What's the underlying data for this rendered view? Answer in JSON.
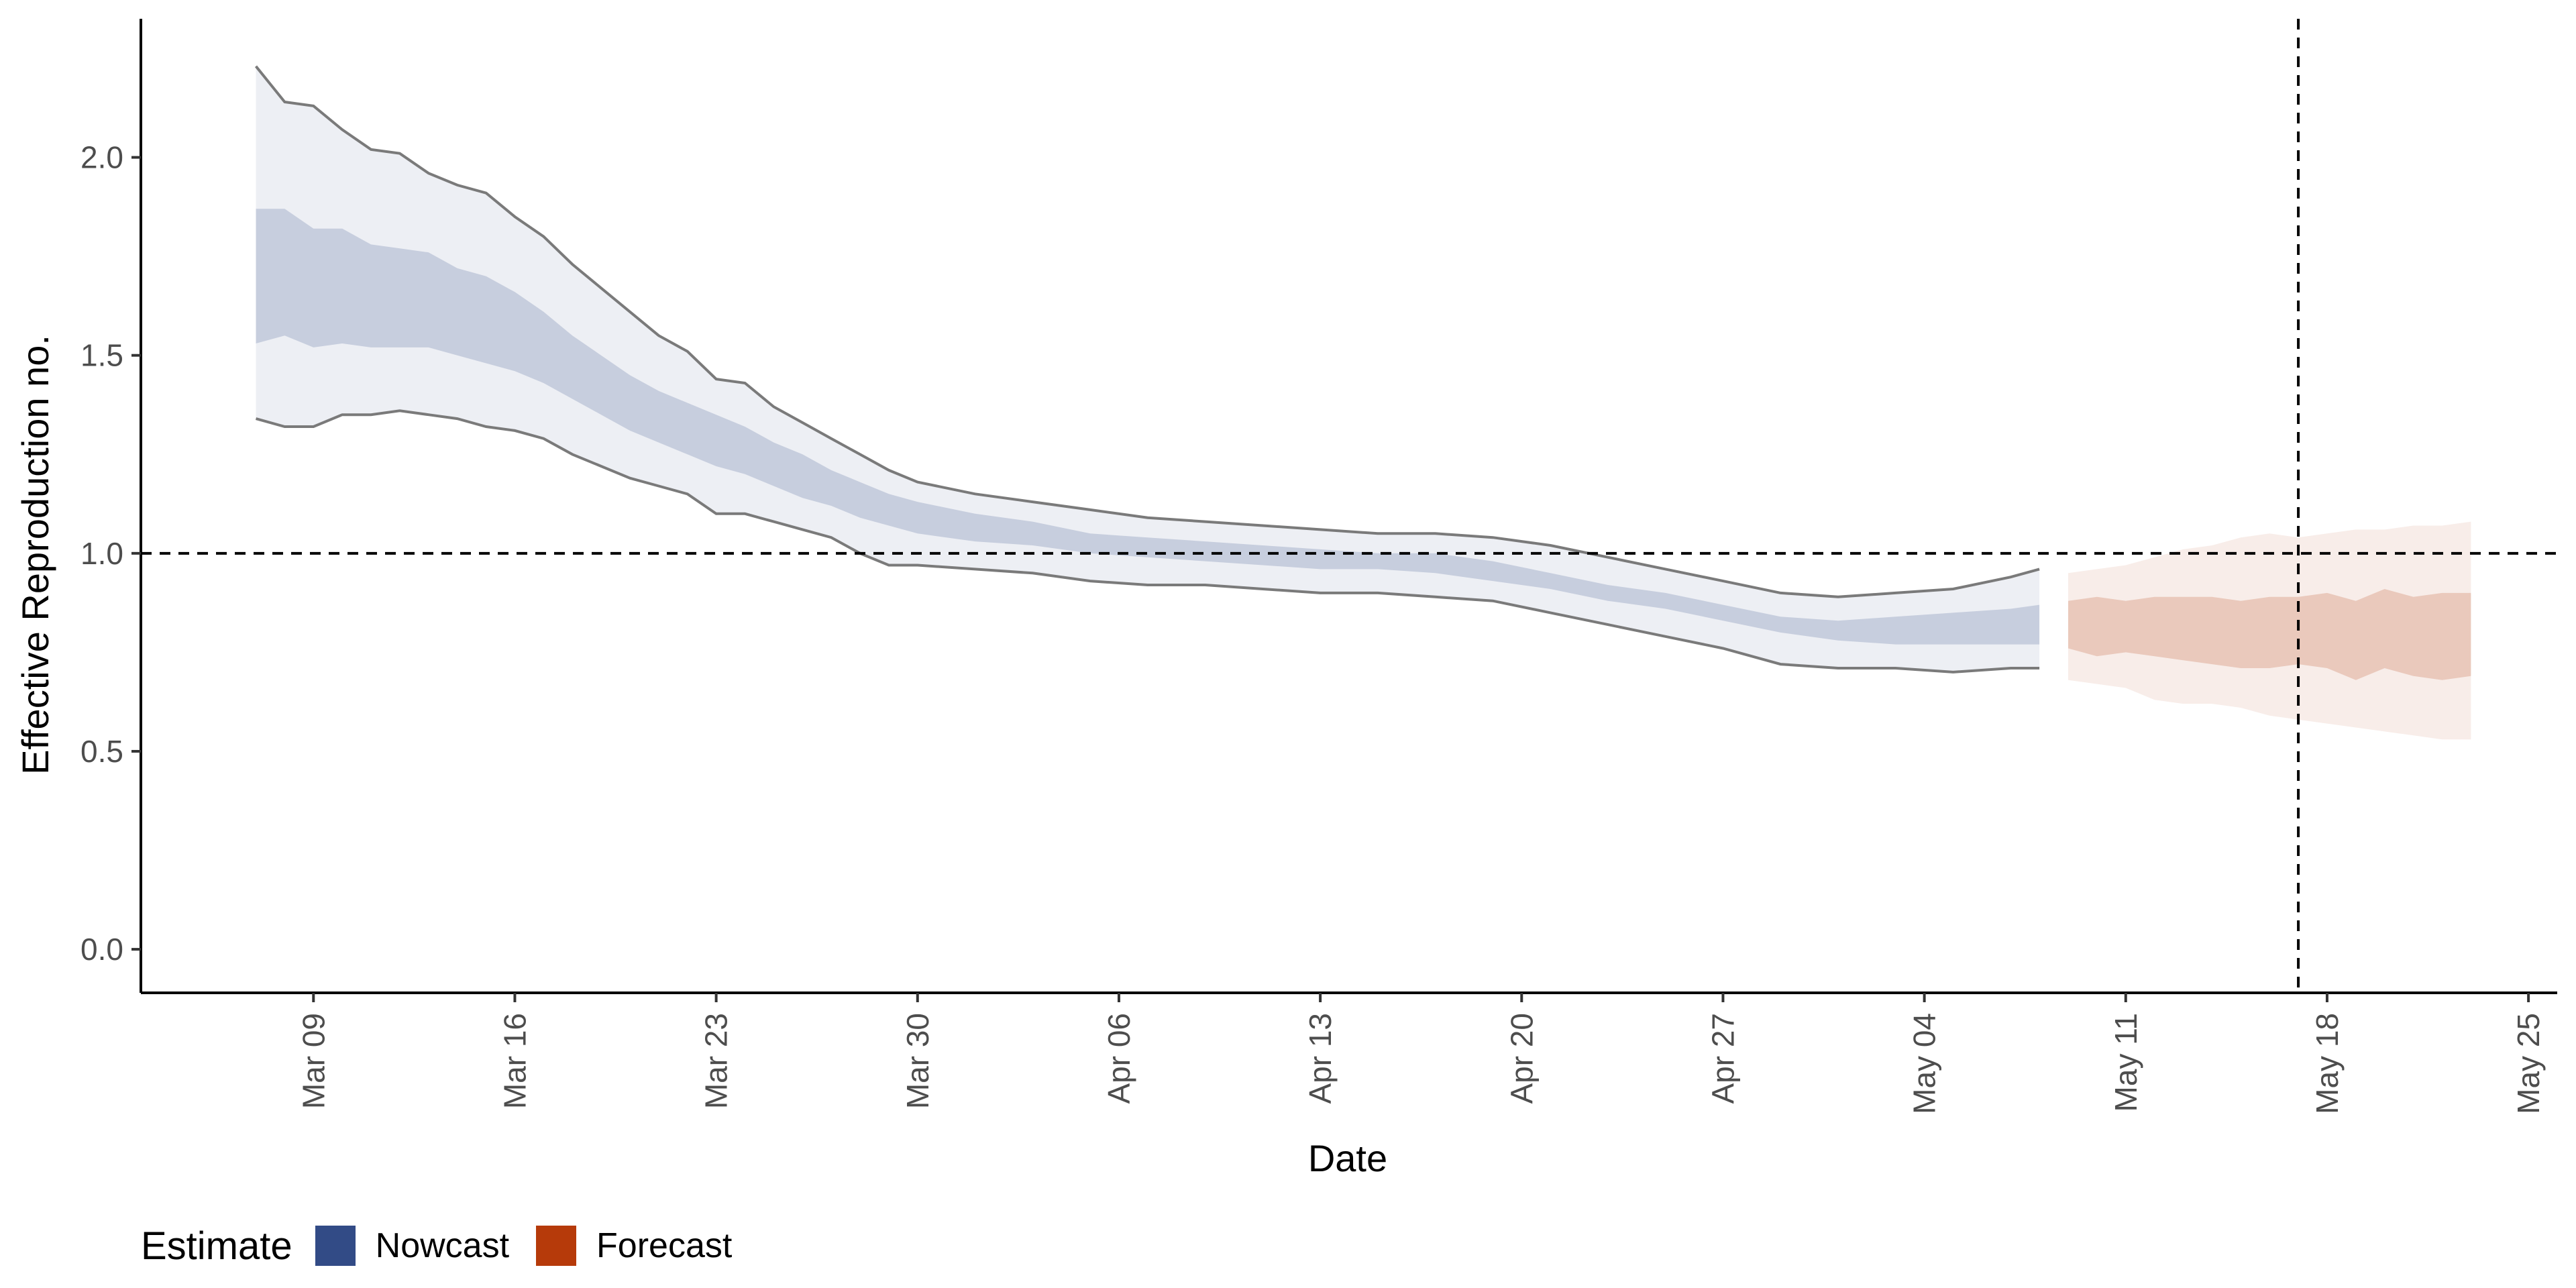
{
  "chart_data": {
    "type": "area",
    "xlabel": "Date",
    "ylabel": "Effective Reproduction no.",
    "ylim": [
      -0.11,
      2.35
    ],
    "xlim": [
      "2020-03-03",
      "2020-05-26"
    ],
    "x_ticks": [
      "2020-03-09",
      "2020-03-16",
      "2020-03-23",
      "2020-03-30",
      "2020-04-06",
      "2020-04-13",
      "2020-04-20",
      "2020-04-27",
      "2020-05-04",
      "2020-05-11",
      "2020-05-18",
      "2020-05-25"
    ],
    "x_tick_labels": [
      "Mar 09",
      "Mar 16",
      "Mar 23",
      "Mar 30",
      "Apr 06",
      "Apr 13",
      "Apr 20",
      "Apr 27",
      "May 04",
      "May 11",
      "May 18",
      "May 25"
    ],
    "y_ticks": [
      0.0,
      0.5,
      1.0,
      1.5,
      2.0
    ],
    "y_tick_labels": [
      "0.0",
      "0.5",
      "1.0",
      "1.5",
      "2.0"
    ],
    "hline": 1.0,
    "vline": "2020-05-17",
    "grid": false,
    "legend": {
      "title": "Estimate",
      "position": "bottom-left",
      "items": [
        {
          "label": "Nowcast",
          "color": "#324b86"
        },
        {
          "label": "Forecast",
          "color": "#b63a0a"
        }
      ]
    },
    "series": [
      {
        "name": "Nowcast",
        "color": "#324b86",
        "x": [
          "2020-03-07",
          "2020-03-08",
          "2020-03-09",
          "2020-03-10",
          "2020-03-11",
          "2020-03-12",
          "2020-03-13",
          "2020-03-14",
          "2020-03-15",
          "2020-03-16",
          "2020-03-17",
          "2020-03-18",
          "2020-03-19",
          "2020-03-20",
          "2020-03-21",
          "2020-03-22",
          "2020-03-23",
          "2020-03-24",
          "2020-03-25",
          "2020-03-26",
          "2020-03-27",
          "2020-03-28",
          "2020-03-29",
          "2020-03-30",
          "2020-04-01",
          "2020-04-03",
          "2020-04-05",
          "2020-04-07",
          "2020-04-09",
          "2020-04-11",
          "2020-04-13",
          "2020-04-15",
          "2020-04-17",
          "2020-04-19",
          "2020-04-21",
          "2020-04-23",
          "2020-04-25",
          "2020-04-27",
          "2020-04-29",
          "2020-05-01",
          "2020-05-03",
          "2020-05-05",
          "2020-05-07",
          "2020-05-08"
        ],
        "upper_90": [
          2.23,
          2.14,
          2.13,
          2.07,
          2.02,
          2.01,
          1.96,
          1.93,
          1.91,
          1.85,
          1.8,
          1.73,
          1.67,
          1.61,
          1.55,
          1.51,
          1.44,
          1.43,
          1.37,
          1.33,
          1.29,
          1.25,
          1.21,
          1.18,
          1.15,
          1.13,
          1.11,
          1.09,
          1.08,
          1.07,
          1.06,
          1.05,
          1.05,
          1.04,
          1.02,
          0.99,
          0.96,
          0.93,
          0.9,
          0.89,
          0.9,
          0.91,
          0.94,
          0.96
        ],
        "upper_50": [
          1.87,
          1.87,
          1.82,
          1.82,
          1.78,
          1.77,
          1.76,
          1.72,
          1.7,
          1.66,
          1.61,
          1.55,
          1.5,
          1.45,
          1.41,
          1.38,
          1.35,
          1.32,
          1.28,
          1.25,
          1.21,
          1.18,
          1.15,
          1.13,
          1.1,
          1.08,
          1.05,
          1.04,
          1.03,
          1.02,
          1.01,
          1.0,
          1.0,
          0.98,
          0.95,
          0.92,
          0.9,
          0.87,
          0.84,
          0.83,
          0.84,
          0.85,
          0.86,
          0.87
        ],
        "lower_50": [
          1.53,
          1.55,
          1.52,
          1.53,
          1.52,
          1.52,
          1.52,
          1.5,
          1.48,
          1.46,
          1.43,
          1.39,
          1.35,
          1.31,
          1.28,
          1.25,
          1.22,
          1.2,
          1.17,
          1.14,
          1.12,
          1.09,
          1.07,
          1.05,
          1.03,
          1.02,
          1.0,
          0.99,
          0.98,
          0.97,
          0.96,
          0.96,
          0.95,
          0.93,
          0.91,
          0.88,
          0.86,
          0.83,
          0.8,
          0.78,
          0.77,
          0.77,
          0.77,
          0.77
        ],
        "lower_90": [
          1.34,
          1.32,
          1.32,
          1.35,
          1.35,
          1.36,
          1.35,
          1.34,
          1.32,
          1.31,
          1.29,
          1.25,
          1.22,
          1.19,
          1.17,
          1.15,
          1.1,
          1.1,
          1.08,
          1.06,
          1.04,
          1.0,
          0.97,
          0.97,
          0.96,
          0.95,
          0.93,
          0.92,
          0.92,
          0.91,
          0.9,
          0.9,
          0.89,
          0.88,
          0.85,
          0.82,
          0.79,
          0.76,
          0.72,
          0.71,
          0.71,
          0.7,
          0.71,
          0.71
        ]
      },
      {
        "name": "Forecast",
        "color": "#b63a0a",
        "x": [
          "2020-05-09",
          "2020-05-10",
          "2020-05-11",
          "2020-05-12",
          "2020-05-13",
          "2020-05-14",
          "2020-05-15",
          "2020-05-16",
          "2020-05-17",
          "2020-05-18",
          "2020-05-19",
          "2020-05-20",
          "2020-05-21",
          "2020-05-22",
          "2020-05-23"
        ],
        "upper_90": [
          0.95,
          0.96,
          0.97,
          0.99,
          1.01,
          1.02,
          1.04,
          1.05,
          1.04,
          1.05,
          1.06,
          1.06,
          1.07,
          1.07,
          1.08
        ],
        "upper_50": [
          0.88,
          0.89,
          0.88,
          0.89,
          0.89,
          0.89,
          0.88,
          0.89,
          0.89,
          0.9,
          0.88,
          0.91,
          0.89,
          0.9,
          0.9
        ],
        "lower_50": [
          0.76,
          0.74,
          0.75,
          0.74,
          0.73,
          0.72,
          0.71,
          0.71,
          0.72,
          0.71,
          0.68,
          0.71,
          0.69,
          0.68,
          0.69
        ],
        "lower_90": [
          0.68,
          0.67,
          0.66,
          0.63,
          0.62,
          0.62,
          0.61,
          0.59,
          0.58,
          0.57,
          0.56,
          0.55,
          0.54,
          0.53,
          0.53
        ]
      }
    ]
  }
}
